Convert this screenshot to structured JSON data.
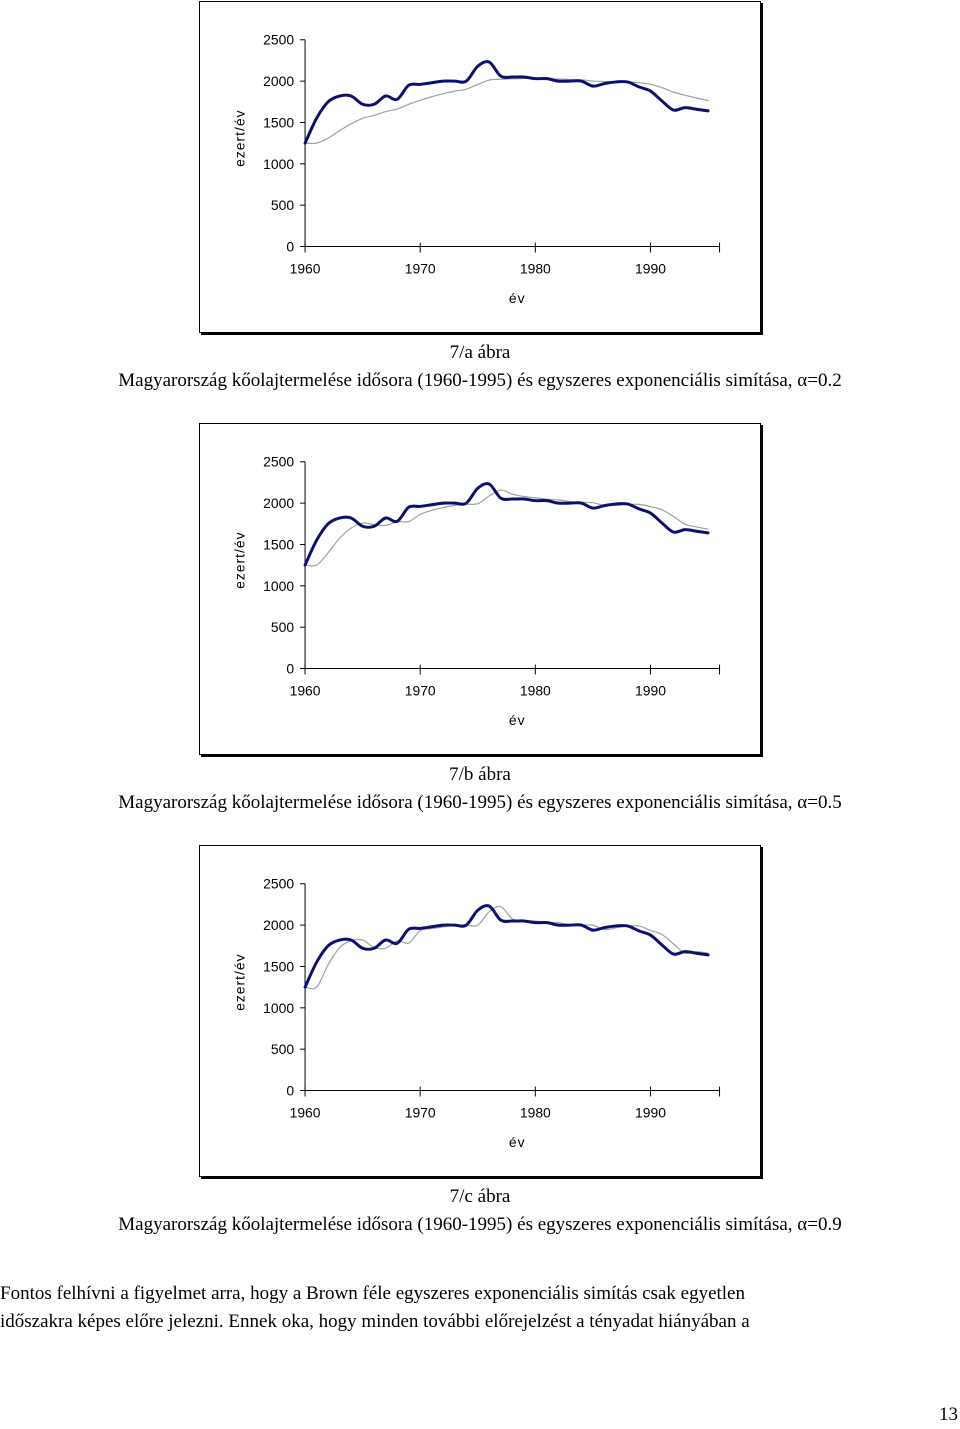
{
  "chart_data": [
    {
      "type": "line",
      "xlabel": "év",
      "ylabel": "ezert/év",
      "xticks": [
        "1960",
        "1970",
        "1980",
        "1990"
      ],
      "yticks": [
        "0",
        "500",
        "1000",
        "1500",
        "2000",
        "2500"
      ],
      "xlim": [
        1960,
        1996
      ],
      "ylim": [
        0,
        2500
      ],
      "x": [
        1960,
        1961,
        1962,
        1963,
        1964,
        1965,
        1966,
        1967,
        1968,
        1969,
        1970,
        1971,
        1972,
        1973,
        1974,
        1975,
        1976,
        1977,
        1978,
        1979,
        1980,
        1981,
        1982,
        1983,
        1984,
        1985,
        1986,
        1987,
        1988,
        1989,
        1990,
        1991,
        1992,
        1993,
        1994,
        1995
      ],
      "series": [
        {
          "values": [
            1250,
            1550,
            1750,
            1820,
            1820,
            1720,
            1720,
            1820,
            1780,
            1950,
            1960,
            1980,
            2000,
            2000,
            2000,
            2180,
            2230,
            2060,
            2050,
            2050,
            2030,
            2030,
            2000,
            2000,
            2000,
            1940,
            1970,
            1990,
            1990,
            1930,
            1880,
            1760,
            1650,
            1680,
            1660,
            1640
          ]
        },
        {
          "values": [
            1250,
            1250,
            1310,
            1400,
            1484,
            1551,
            1585,
            1632,
            1662,
            1720,
            1768,
            1811,
            1848,
            1879,
            1903,
            1959,
            2013,
            2022,
            2028,
            2032,
            2032,
            2032,
            2026,
            2020,
            2016,
            2001,
            1995,
            1994,
            1993,
            1981,
            1961,
            1921,
            1867,
            1830,
            1796,
            1765
          ]
        }
      ]
    },
    {
      "type": "line",
      "xlabel": "év",
      "ylabel": "ezert/év",
      "xticks": [
        "1960",
        "1970",
        "1980",
        "1990"
      ],
      "yticks": [
        "0",
        "500",
        "1000",
        "1500",
        "2000",
        "2500"
      ],
      "xlim": [
        1960,
        1996
      ],
      "ylim": [
        0,
        2500
      ],
      "x": [
        1960,
        1961,
        1962,
        1963,
        1964,
        1965,
        1966,
        1967,
        1968,
        1969,
        1970,
        1971,
        1972,
        1973,
        1974,
        1975,
        1976,
        1977,
        1978,
        1979,
        1980,
        1981,
        1982,
        1983,
        1984,
        1985,
        1986,
        1987,
        1988,
        1989,
        1990,
        1991,
        1992,
        1993,
        1994,
        1995
      ],
      "series": [
        {
          "values": [
            1250,
            1550,
            1750,
            1820,
            1820,
            1720,
            1720,
            1820,
            1780,
            1950,
            1960,
            1980,
            2000,
            2000,
            2000,
            2180,
            2230,
            2060,
            2050,
            2050,
            2030,
            2030,
            2000,
            2000,
            2000,
            1940,
            1970,
            1990,
            1990,
            1930,
            1880,
            1760,
            1650,
            1680,
            1660,
            1640
          ]
        },
        {
          "values": [
            1250,
            1250,
            1400,
            1575,
            1698,
            1759,
            1739,
            1730,
            1775,
            1777,
            1864,
            1912,
            1946,
            1973,
            1986,
            1993,
            2087,
            2158,
            2109,
            2080,
            2065,
            2047,
            2039,
            2019,
            2010,
            2005,
            1972,
            1971,
            1981,
            1985,
            1958,
            1919,
            1839,
            1745,
            1712,
            1686
          ]
        }
      ]
    },
    {
      "type": "line",
      "xlabel": "év",
      "ylabel": "ezert/év",
      "xticks": [
        "1960",
        "1970",
        "1980",
        "1990"
      ],
      "yticks": [
        "0",
        "500",
        "1000",
        "1500",
        "2000",
        "2500"
      ],
      "xlim": [
        1960,
        1996
      ],
      "ylim": [
        0,
        2500
      ],
      "x": [
        1960,
        1961,
        1962,
        1963,
        1964,
        1965,
        1966,
        1967,
        1968,
        1969,
        1970,
        1971,
        1972,
        1973,
        1974,
        1975,
        1976,
        1977,
        1978,
        1979,
        1980,
        1981,
        1982,
        1983,
        1984,
        1985,
        1986,
        1987,
        1988,
        1989,
        1990,
        1991,
        1992,
        1993,
        1994,
        1995
      ],
      "series": [
        {
          "values": [
            1250,
            1550,
            1750,
            1820,
            1820,
            1720,
            1720,
            1820,
            1780,
            1950,
            1960,
            1980,
            2000,
            2000,
            2000,
            2180,
            2230,
            2060,
            2050,
            2050,
            2030,
            2030,
            2000,
            2000,
            2000,
            1940,
            1970,
            1990,
            1990,
            1930,
            1880,
            1760,
            1650,
            1680,
            1660,
            1640
          ]
        },
        {
          "values": [
            1250,
            1250,
            1520,
            1727,
            1811,
            1819,
            1730,
            1721,
            1810,
            1783,
            1933,
            1957,
            1978,
            1998,
            2000,
            2000,
            2162,
            2223,
            2076,
            2053,
            2050,
            2032,
            2030,
            2003,
            2000,
            2000,
            1946,
            1968,
            1988,
            1990,
            1936,
            1886,
            1773,
            1662,
            1678,
            1662
          ]
        }
      ]
    }
  ],
  "captions": [
    {
      "label": "7/a ábra",
      "text": "Magyarország kőolajtermelése idősora (1960-1995) és egyszeres exponenciális simítása, α=0.2"
    },
    {
      "label": "7/b ábra",
      "text": "Magyarország kőolajtermelése idősora (1960-1995) és egyszeres exponenciális simítása, α=0.5"
    },
    {
      "label": "7/c ábra",
      "text": "Magyarország kőolajtermelése idősora (1960-1995) és egyszeres exponenciális simítása, α=0.9"
    }
  ],
  "paragraph": {
    "line1": "Fontos felhívni a figyelmet arra, hogy a Brown féle egyszeres exponenciális simítás csak egyetlen",
    "line2": "időszakra képes előre jelezni. Ennek oka, hogy minden további előrejelzést a tényadat hiányában a"
  },
  "page_number": "13",
  "colors": {
    "actual_series": "#0b0f6e",
    "smoothed_series": "#a0a0a0",
    "axis": "#000000"
  }
}
